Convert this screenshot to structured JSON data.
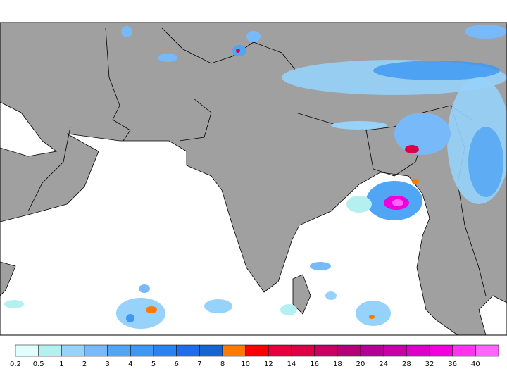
{
  "colorbar": {
    "labels": [
      "0.2",
      "0.5",
      "1",
      "2",
      "3",
      "4",
      "5",
      "6",
      "7",
      "8",
      "10",
      "12",
      "14",
      "16",
      "18",
      "20",
      "24",
      "28",
      "32",
      "36",
      "40"
    ],
    "colors": [
      "#e1ffff",
      "#b4f0f0",
      "#96d2fa",
      "#78b9fa",
      "#50a5f5",
      "#3c97f5",
      "#2883f0",
      "#1e6eeb",
      "#1464d2",
      "#ff7800",
      "#fa0000",
      "#e6003c",
      "#dc0046",
      "#c80064",
      "#b40078",
      "#b40096",
      "#c800aa",
      "#dc00c8",
      "#f000dc",
      "#ff32f0",
      "#ff64ff"
    ]
  }
}
